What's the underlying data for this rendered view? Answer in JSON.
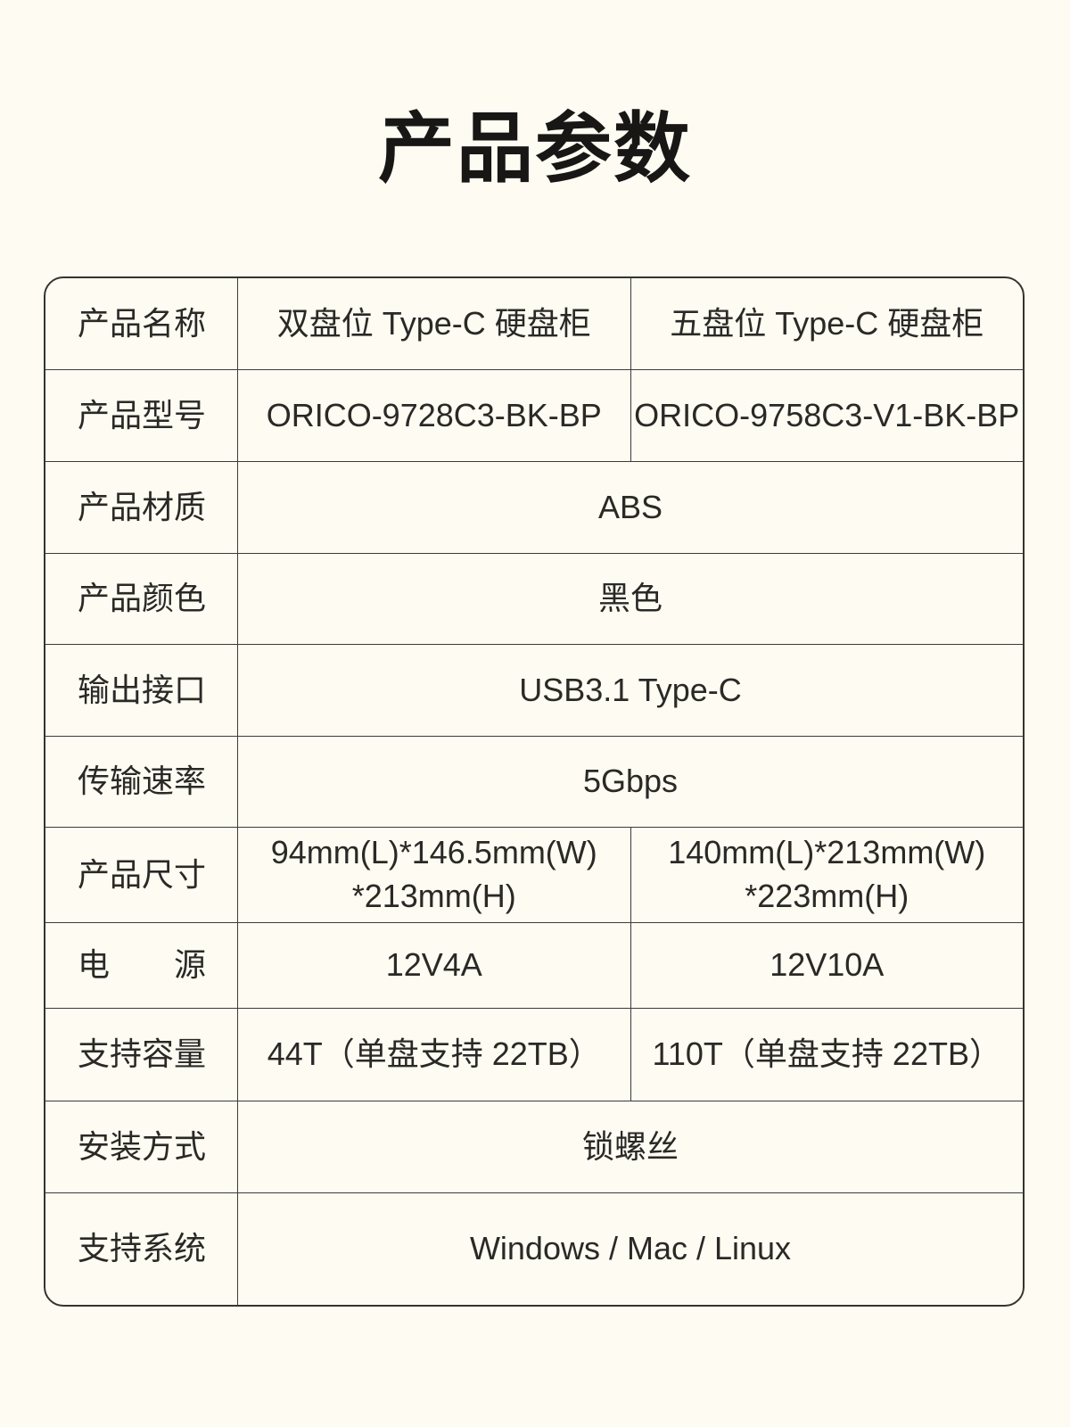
{
  "page": {
    "title": "产品参数",
    "background_color": "#FDFBF2",
    "border_color": "#3C3B36",
    "text_color": "#2A2926"
  },
  "table": {
    "rows": [
      {
        "label": "产品名称",
        "values": [
          "双盘位 Type-C 硬盘柜",
          "五盘位 Type-C 硬盘柜"
        ]
      },
      {
        "label": "产品型号",
        "values": [
          "ORICO-9728C3-BK-BP",
          "ORICO-9758C3-V1-BK-BP"
        ]
      },
      {
        "label": "产品材质",
        "value": "ABS"
      },
      {
        "label": "产品颜色",
        "value": "黑色"
      },
      {
        "label": "输出接口",
        "value": "USB3.1 Type-C"
      },
      {
        "label": "传输速率",
        "value": "5Gbps"
      },
      {
        "label": "产品尺寸",
        "values": [
          "94mm(L)*146.5mm(W)\n*213mm(H)",
          "140mm(L)*213mm(W)\n*223mm(H)"
        ]
      },
      {
        "label": "电　　源",
        "values": [
          "12V4A",
          "12V10A"
        ]
      },
      {
        "label": "支持容量",
        "values": [
          "44T（单盘支持 22TB）",
          "110T（单盘支持 22TB）"
        ]
      },
      {
        "label": "安装方式",
        "value": "锁螺丝"
      },
      {
        "label": "支持系统",
        "value": "Windows / Mac / Linux"
      }
    ]
  }
}
